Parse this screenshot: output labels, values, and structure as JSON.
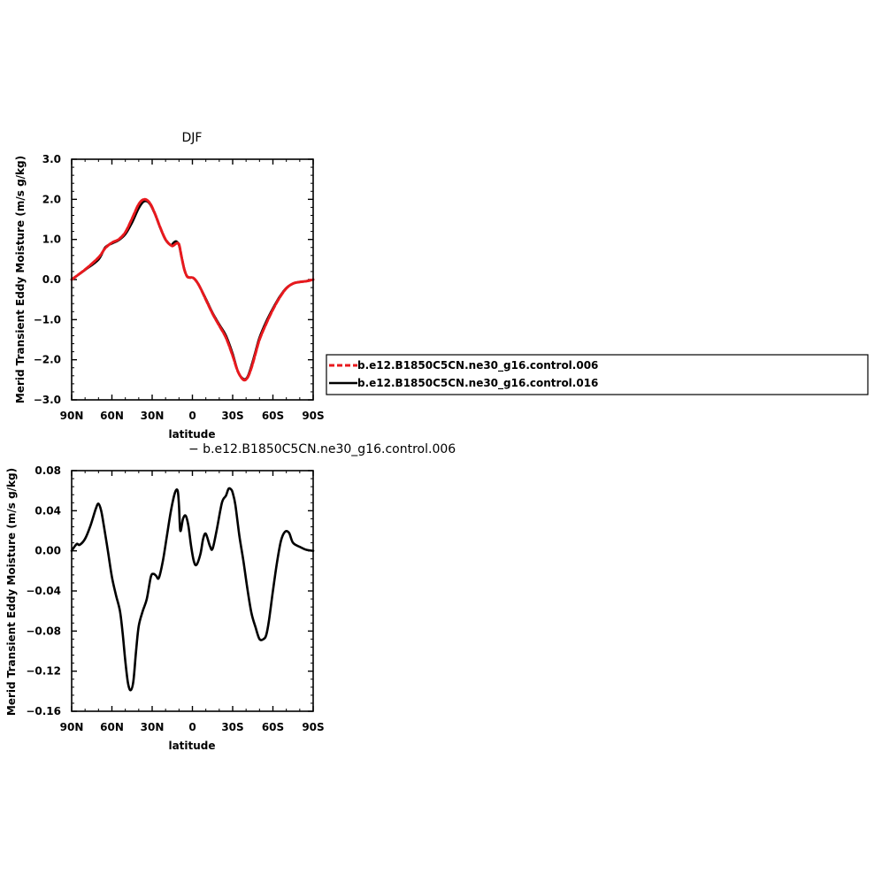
{
  "chart_data": [
    {
      "type": "line",
      "title": "DJF",
      "xlabel": "latitude",
      "ylabel": "Merid Transient Eddy Moisture (m/s g/kg)",
      "xlim": [
        90,
        -90
      ],
      "ylim": [
        -3.0,
        3.0
      ],
      "x_ticks": [
        90,
        60,
        30,
        0,
        -30,
        -60,
        -90
      ],
      "x_tick_labels": [
        "90N",
        "60N",
        "30N",
        "0",
        "30S",
        "60S",
        "90S"
      ],
      "y_ticks": [
        3.0,
        2.0,
        1.0,
        0.0,
        -1.0,
        -2.0,
        -3.0
      ],
      "y_tick_labels": [
        "3.0",
        "2.0",
        "1.0",
        "0.0",
        "−1.0",
        "−2.0",
        "−3.0"
      ],
      "grid": false,
      "legend": "right",
      "series": [
        {
          "name": "b.e12.B1850C5CN.ne30_g16.control.006",
          "color": "#e8191e",
          "dash": true,
          "x": [
            90,
            80,
            70,
            65,
            60,
            55,
            50,
            45,
            40,
            36,
            32,
            28,
            24,
            20,
            16,
            14,
            12,
            10,
            8,
            6,
            4,
            2,
            0,
            -2,
            -5,
            -10,
            -15,
            -20,
            -25,
            -30,
            -34,
            -38,
            -41,
            -44,
            -47,
            -50,
            -55,
            -60,
            -65,
            -70,
            -75,
            -80,
            -85,
            -90
          ],
          "y": [
            0.0,
            0.25,
            0.55,
            0.78,
            0.92,
            1.0,
            1.18,
            1.52,
            1.88,
            2.0,
            1.92,
            1.65,
            1.3,
            1.0,
            0.85,
            0.85,
            0.9,
            0.88,
            0.55,
            0.25,
            0.08,
            0.05,
            0.05,
            0.0,
            -0.15,
            -0.5,
            -0.85,
            -1.15,
            -1.45,
            -1.9,
            -2.3,
            -2.5,
            -2.45,
            -2.2,
            -1.85,
            -1.5,
            -1.1,
            -0.75,
            -0.45,
            -0.22,
            -0.1,
            -0.06,
            -0.04,
            0.0
          ]
        },
        {
          "name": "b.e12.B1850C5CN.ne30_g16.control.016",
          "color": "#000000",
          "dash": false,
          "x": [
            90,
            80,
            70,
            65,
            60,
            55,
            50,
            45,
            40,
            36,
            32,
            28,
            24,
            20,
            16,
            14,
            12,
            10,
            8,
            6,
            4,
            2,
            0,
            -2,
            -5,
            -10,
            -15,
            -20,
            -25,
            -30,
            -34,
            -38,
            -41,
            -44,
            -47,
            -50,
            -55,
            -60,
            -65,
            -70,
            -75,
            -80,
            -85,
            -90
          ],
          "y": [
            0.0,
            0.24,
            0.5,
            0.8,
            0.9,
            0.98,
            1.13,
            1.42,
            1.78,
            1.95,
            1.9,
            1.64,
            1.29,
            0.99,
            0.86,
            0.92,
            0.95,
            0.86,
            0.55,
            0.25,
            0.08,
            0.05,
            0.05,
            0.0,
            -0.15,
            -0.48,
            -0.83,
            -1.12,
            -1.4,
            -1.85,
            -2.3,
            -2.48,
            -2.43,
            -2.15,
            -1.8,
            -1.45,
            -1.05,
            -0.72,
            -0.43,
            -0.21,
            -0.1,
            -0.06,
            -0.04,
            0.0
          ]
        }
      ]
    },
    {
      "type": "line",
      "title": "−  b.e12.B1850C5CN.ne30_g16.control.006",
      "xlabel": "latitude",
      "ylabel": "Merid Transient Eddy Moisture (m/s g/kg)",
      "xlim": [
        90,
        -90
      ],
      "ylim": [
        -0.16,
        0.08
      ],
      "x_ticks": [
        90,
        60,
        30,
        0,
        -30,
        -60,
        -90
      ],
      "x_tick_labels": [
        "90N",
        "60N",
        "30N",
        "0",
        "30S",
        "60S",
        "90S"
      ],
      "y_ticks": [
        0.08,
        0.04,
        0.0,
        -0.04,
        -0.08,
        -0.12,
        -0.16
      ],
      "y_tick_labels": [
        "0.08",
        "0.04",
        "0.00",
        "−0.04",
        "−0.08",
        "−0.12",
        "−0.16"
      ],
      "grid": false,
      "series": [
        {
          "color": "#000000",
          "x": [
            90,
            88,
            86,
            84,
            80,
            76,
            72,
            70,
            68,
            66,
            63,
            60,
            57,
            54,
            52,
            50,
            48,
            46,
            44,
            42,
            40,
            37,
            34,
            31,
            29,
            27,
            25,
            22,
            19,
            16,
            13,
            11,
            10,
            9,
            7,
            5,
            3,
            1,
            -1,
            -3,
            -6,
            -8,
            -10,
            -13,
            -15,
            -18,
            -22,
            -25,
            -27,
            -29,
            -30,
            -32,
            -35,
            -38,
            -41,
            -44,
            -47,
            -50,
            -53,
            -55,
            -57,
            -60,
            -63,
            -66,
            -69,
            -72,
            -75,
            -80,
            -85,
            -90
          ],
          "y": [
            0.0,
            0.004,
            0.007,
            0.006,
            0.012,
            0.025,
            0.042,
            0.047,
            0.04,
            0.025,
            0.0,
            -0.026,
            -0.044,
            -0.06,
            -0.082,
            -0.11,
            -0.132,
            -0.139,
            -0.13,
            -0.1,
            -0.075,
            -0.06,
            -0.048,
            -0.026,
            -0.023,
            -0.025,
            -0.027,
            -0.01,
            0.015,
            0.04,
            0.058,
            0.06,
            0.045,
            0.02,
            0.032,
            0.035,
            0.025,
            0.005,
            -0.01,
            -0.014,
            -0.003,
            0.012,
            0.017,
            0.005,
            0.002,
            0.02,
            0.048,
            0.055,
            0.062,
            0.061,
            0.058,
            0.046,
            0.015,
            -0.01,
            -0.038,
            -0.062,
            -0.076,
            -0.088,
            -0.088,
            -0.084,
            -0.07,
            -0.04,
            -0.012,
            0.01,
            0.019,
            0.018,
            0.008,
            0.004,
            0.001,
            0.0
          ]
        }
      ]
    }
  ]
}
